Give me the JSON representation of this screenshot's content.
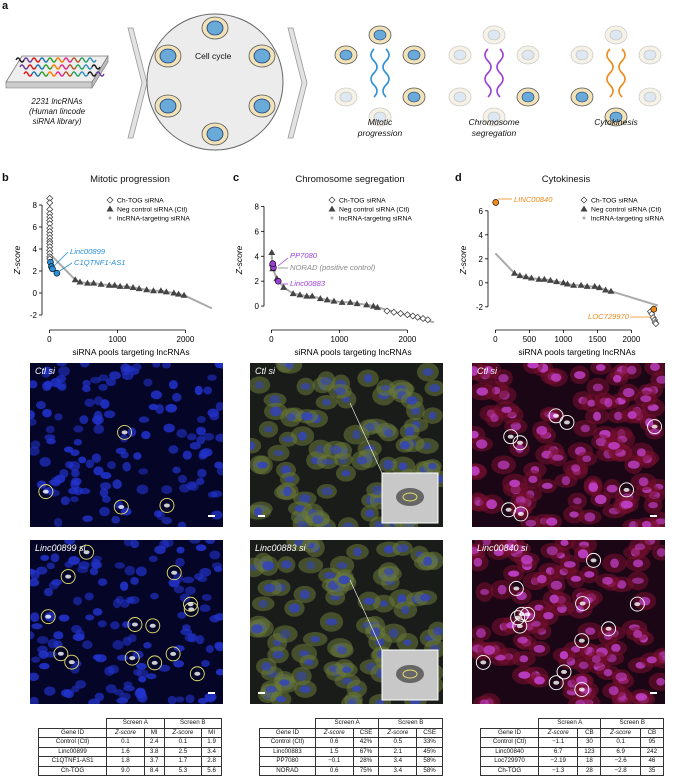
{
  "panel_labels": {
    "a": "a",
    "b": "b",
    "c": "c",
    "d": "d"
  },
  "panel_a": {
    "library_caption": [
      "2231 lncRNAs",
      "(Human lincode",
      "siRNA library)"
    ],
    "cell_cycle_label": "Cell cycle",
    "phases": [
      "Mitotic",
      "progression",
      "Chromosome",
      "segregation",
      "Cytokinesis"
    ]
  },
  "panels": {
    "b": {
      "title": "Mitotic progression",
      "ylabel": "Z-score",
      "xlabel": "siRNA pools targeting lncRNAs"
    },
    "c": {
      "title": "Chromosome segregation",
      "ylabel": "Z-score",
      "xlabel": "siRNA pools targeting lncRNAs"
    },
    "d": {
      "title": "Cytokinesis",
      "ylabel": "Z-score",
      "xlabel": "siRNA pools targeting lncRNAs"
    }
  },
  "legend": [
    "Ch-TOG siRNA",
    "Neg control siRNA (Ctl)",
    "lncRNA-targeting siRNA"
  ],
  "annotations": {
    "b": [
      "Linc00899",
      "C1QTNF1-AS1"
    ],
    "c": [
      "PP7080",
      "NORAD (positive control)",
      "Linc00883"
    ],
    "d": [
      "LINC00840",
      "LOC729970"
    ]
  },
  "colors": {
    "b": "#2a8fd6",
    "c": "#9b3fd6",
    "d": "#ee8a1c",
    "neg": "#333333",
    "lnc": "#aaaaaa"
  },
  "chart_data": [
    {
      "type": "scatter",
      "title": "Mitotic progression",
      "xlabel": "siRNA pools targeting lncRNAs",
      "ylabel": "Z-score",
      "xlim": [
        -50,
        2450
      ],
      "ylim": [
        -3,
        9
      ],
      "xticks": [
        0,
        1000,
        2000
      ],
      "yticks": [
        -2,
        0,
        2,
        4,
        6,
        8
      ],
      "series": [
        {
          "name": "Ch-TOG siRNA",
          "points": [
            [
              5,
              8.6
            ],
            [
              5,
              8.2
            ],
            [
              5,
              7.6
            ],
            [
              5,
              7.2
            ],
            [
              5,
              6.9
            ],
            [
              5,
              6.6
            ],
            [
              5,
              6.3
            ],
            [
              5,
              5.9
            ],
            [
              5,
              5.6
            ],
            [
              5,
              5.3
            ],
            [
              5,
              5.0
            ],
            [
              5,
              4.7
            ],
            [
              5,
              4.5
            ],
            [
              5,
              4.2
            ],
            [
              5,
              3.9
            ],
            [
              5,
              3.6
            ],
            [
              5,
              3.3
            ],
            [
              5,
              3.1
            ]
          ]
        },
        {
          "name": "Neg control siRNA (Ctl)",
          "points": [
            [
              380,
              1.2
            ],
            [
              450,
              1.0
            ],
            [
              560,
              0.9
            ],
            [
              650,
              0.9
            ],
            [
              760,
              0.8
            ],
            [
              880,
              0.7
            ],
            [
              960,
              0.7
            ],
            [
              1040,
              0.6
            ],
            [
              1140,
              0.6
            ],
            [
              1230,
              0.5
            ],
            [
              1320,
              0.4
            ],
            [
              1430,
              0.3
            ],
            [
              1530,
              0.2
            ],
            [
              1640,
              0.2
            ],
            [
              1720,
              0.1
            ],
            [
              1830,
              0.0
            ],
            [
              1900,
              -0.1
            ],
            [
              1980,
              -0.2
            ]
          ]
        },
        {
          "name": "Linc00899",
          "points": [
            [
              15,
              2.8
            ],
            [
              30,
              2.4
            ]
          ]
        },
        {
          "name": "C1QTNF1-AS1",
          "points": [
            [
              45,
              2.2
            ],
            [
              110,
              1.8
            ]
          ]
        }
      ]
    },
    {
      "type": "scatter",
      "title": "Chromosome segregation",
      "xlabel": "siRNA pools targeting lncRNAs",
      "ylabel": "Z-score",
      "xlim": [
        -50,
        2450
      ],
      "ylim": [
        -1.6,
        9
      ],
      "xticks": [
        0,
        1000,
        2000
      ],
      "yticks": [
        0,
        2,
        4,
        6,
        8
      ],
      "series": [
        {
          "name": "Ch-TOG siRNA",
          "points": [
            [
              1700,
              -0.4
            ],
            [
              1800,
              -0.5
            ],
            [
              1900,
              -0.6
            ],
            [
              2000,
              -0.7
            ],
            [
              2080,
              -0.8
            ],
            [
              2150,
              -0.9
            ],
            [
              2230,
              -1.0
            ],
            [
              2300,
              -1.1
            ]
          ]
        },
        {
          "name": "Neg control siRNA (Ctl)",
          "points": [
            [
              5,
              4.3
            ],
            [
              10,
              3.4
            ],
            [
              20,
              3.0
            ],
            [
              80,
              2.2
            ],
            [
              180,
              1.5
            ],
            [
              320,
              1.0
            ],
            [
              420,
              0.9
            ],
            [
              520,
              0.8
            ],
            [
              600,
              0.8
            ],
            [
              720,
              0.6
            ],
            [
              820,
              0.5
            ],
            [
              920,
              0.4
            ],
            [
              1040,
              0.3
            ],
            [
              1160,
              0.3
            ],
            [
              1260,
              0.2
            ],
            [
              1400,
              0.1
            ],
            [
              1500,
              0.0
            ],
            [
              1560,
              -0.1
            ]
          ]
        },
        {
          "name": "PP7080",
          "points": [
            [
              30,
              3.1
            ]
          ]
        },
        {
          "name": "NORAD (positive control)",
          "points": [
            [
              20,
              3.4
            ]
          ]
        },
        {
          "name": "Linc00883",
          "points": [
            [
              100,
              2.0
            ]
          ]
        }
      ]
    },
    {
      "type": "scatter",
      "title": "Cytokinesis",
      "xlabel": "siRNA pools targeting lncRNAs",
      "ylabel": "Z-score",
      "xlim": [
        -50,
        2450
      ],
      "ylim": [
        -3.6,
        7.4
      ],
      "xticks": [
        0,
        500,
        1000,
        1500,
        2000
      ],
      "yticks": [
        -2,
        0,
        2,
        4,
        6
      ],
      "series": [
        {
          "name": "Ch-TOG siRNA",
          "points": [
            [
              2280,
              -2.4
            ],
            [
              2300,
              -2.6
            ],
            [
              2320,
              -2.9
            ],
            [
              2340,
              -3.1
            ],
            [
              2350,
              -3.3
            ],
            [
              2360,
              -3.4
            ]
          ]
        },
        {
          "name": "Neg control siRNA (Ctl)",
          "points": [
            [
              280,
              0.8
            ],
            [
              360,
              0.6
            ],
            [
              450,
              0.5
            ],
            [
              530,
              0.4
            ],
            [
              640,
              0.3
            ],
            [
              720,
              0.3
            ],
            [
              810,
              0.2
            ],
            [
              900,
              0.1
            ],
            [
              1000,
              0.0
            ],
            [
              1060,
              -0.1
            ],
            [
              1150,
              -0.2
            ],
            [
              1260,
              -0.2
            ],
            [
              1350,
              -0.3
            ],
            [
              1460,
              -0.3
            ],
            [
              1530,
              -0.4
            ],
            [
              1620,
              -0.6
            ],
            [
              1700,
              -0.7
            ]
          ]
        },
        {
          "name": "LINC00840",
          "points": [
            [
              5,
              6.7
            ]
          ]
        },
        {
          "name": "LOC729970",
          "points": [
            [
              2330,
              -2.2
            ]
          ]
        }
      ]
    }
  ],
  "images": {
    "b": {
      "top": "Ctl si",
      "bottom": "Linc00899 si"
    },
    "c": {
      "top": "Ctl si",
      "bottom": "Linc00883 si"
    },
    "d": {
      "top": "Ctl si",
      "bottom": "Linc00840 si"
    }
  },
  "tables": {
    "b": {
      "metric": "MI",
      "headers": [
        "Gene ID",
        "Z-score",
        "MI",
        "Z-score",
        "MI"
      ],
      "screenA": "Screen A",
      "screenB": "Screen B",
      "rows": [
        [
          "Control (Ctl)",
          "0.1",
          "2.4",
          "0.1",
          "1.9"
        ],
        [
          "Linc00899",
          "1.6",
          "3.8",
          "2.5",
          "3.4"
        ],
        [
          "C1QTNF1-AS1",
          "1.8",
          "3.7",
          "1.7",
          "2.8"
        ],
        [
          "Ch-TOG",
          "9.0",
          "8.4",
          "5.3",
          "5.6"
        ]
      ]
    },
    "c": {
      "metric": "CSE",
      "headers": [
        "Gene ID",
        "Z-score",
        "CSE",
        "Z-score",
        "CSE"
      ],
      "screenA": "Screen A",
      "screenB": "Screen B",
      "rows": [
        [
          "Control (Ctl)",
          "0.6",
          "42%",
          "0.5",
          "33%"
        ],
        [
          "Linc00883",
          "1.5",
          "67%",
          "2.1",
          "45%"
        ],
        [
          "PP7080",
          "−0.1",
          "28%",
          "3.4",
          "58%"
        ],
        [
          "NORAD",
          "0.6",
          "75%",
          "3.4",
          "58%"
        ]
      ]
    },
    "d": {
      "metric": "CB",
      "headers": [
        "Gene ID",
        "Z-score",
        "CB",
        "Z-score",
        "CB"
      ],
      "screenA": "Screen A",
      "screenB": "Screen B",
      "rows": [
        [
          "Control (Ctl)",
          "−1.1",
          "30",
          "0.1",
          "95"
        ],
        [
          "Linc00840",
          "6.7",
          "123",
          "6.9",
          "242"
        ],
        [
          "Loc729970",
          "−2.19",
          "18",
          "−2.6",
          "46"
        ],
        [
          "Ch-TOG",
          "−1.3",
          "28",
          "−2.8",
          "35"
        ]
      ]
    }
  }
}
